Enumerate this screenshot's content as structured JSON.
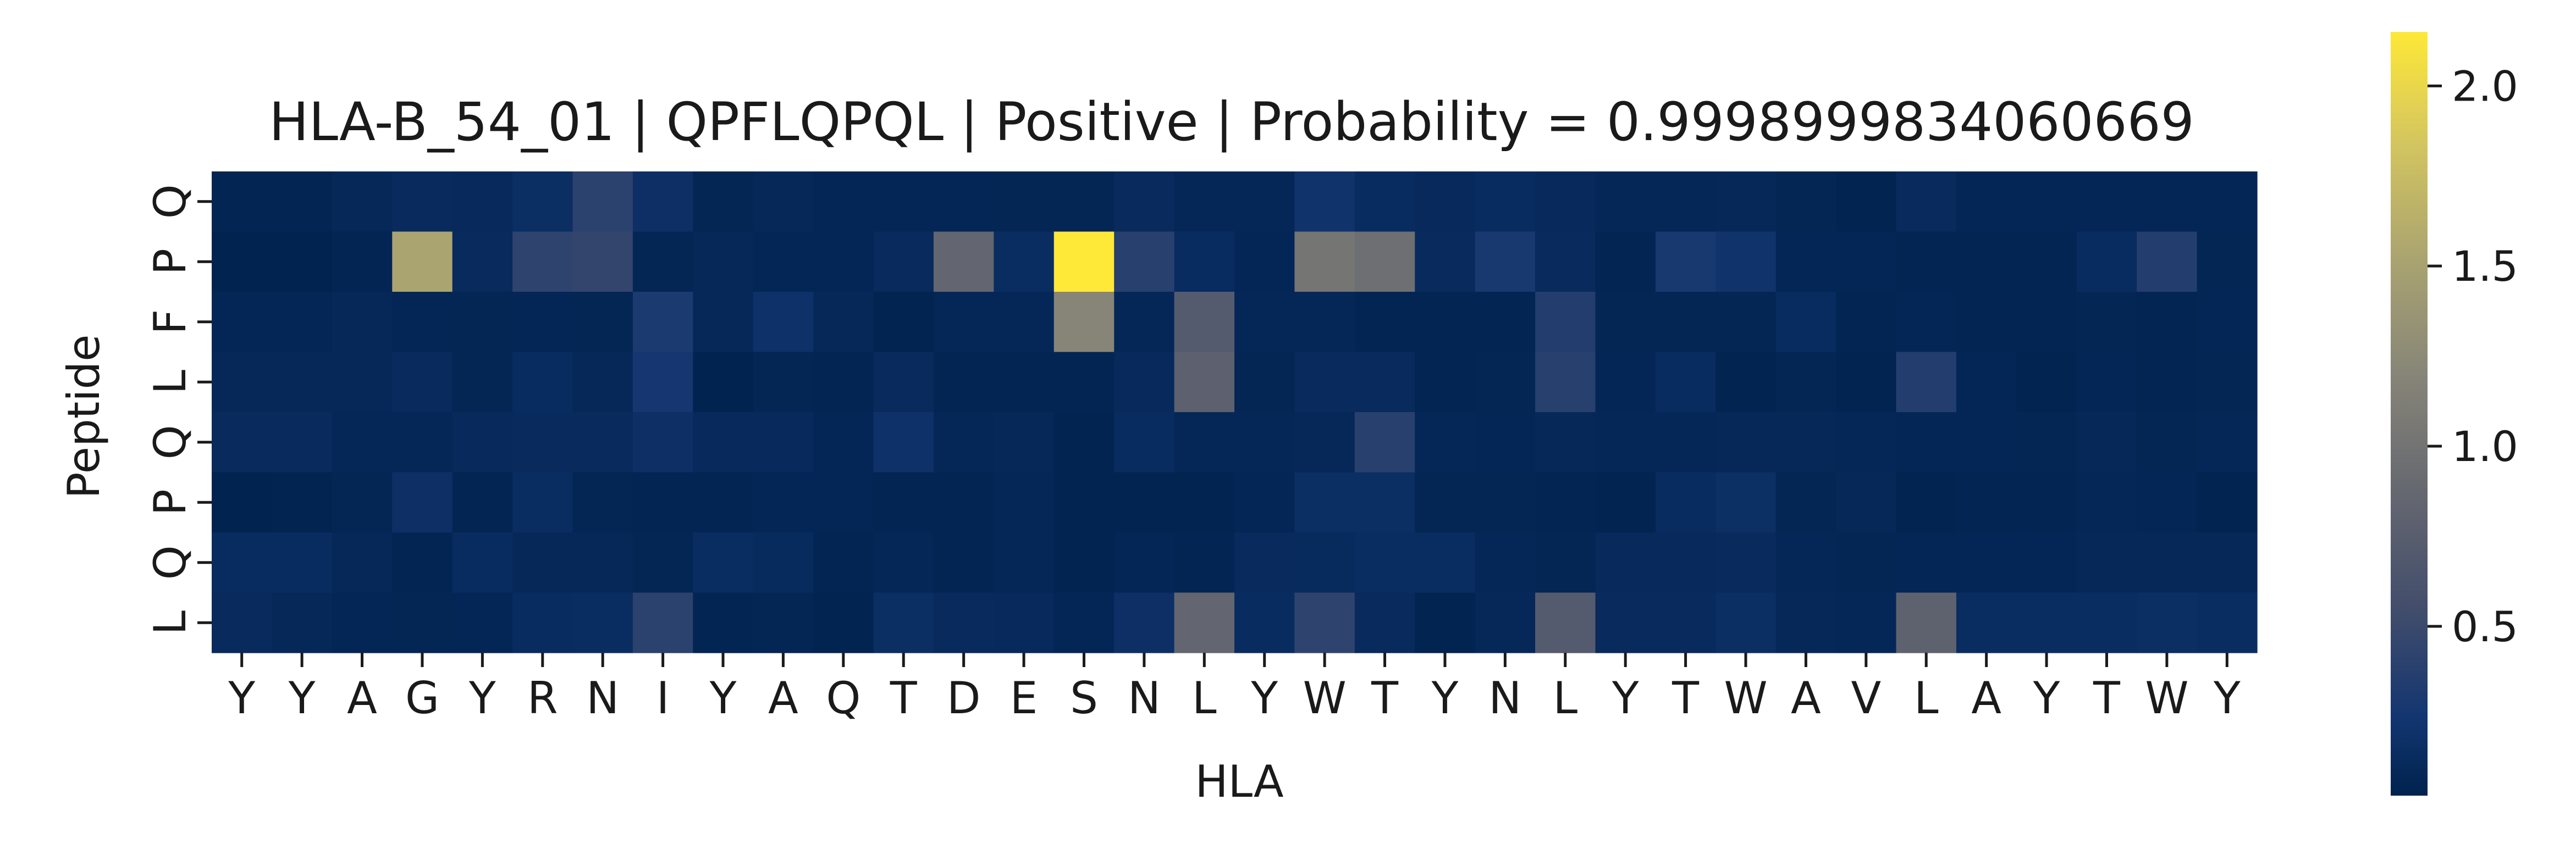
{
  "chart_data": {
    "type": "heatmap",
    "title": "HLA-B_54_01 | QPFLQPQL | Positive | Probability = 0.9998999834060669",
    "xlabel": "HLA",
    "ylabel": "Peptide",
    "x_categories": [
      "Y",
      "Y",
      "A",
      "G",
      "Y",
      "R",
      "N",
      "I",
      "Y",
      "A",
      "Q",
      "T",
      "D",
      "E",
      "S",
      "N",
      "L",
      "Y",
      "W",
      "T",
      "Y",
      "N",
      "L",
      "Y",
      "T",
      "W",
      "A",
      "V",
      "L",
      "A",
      "Y",
      "T",
      "W",
      "Y"
    ],
    "y_categories": [
      "Q",
      "P",
      "F",
      "L",
      "Q",
      "P",
      "Q",
      "L"
    ],
    "colormap": "cividis",
    "colorbar": {
      "min": 0.03,
      "max": 2.15,
      "ticks": [
        0.5,
        1.0,
        1.5,
        2.0
      ],
      "tick_labels": [
        "0.5",
        "1.0",
        "1.5",
        "2.0"
      ]
    },
    "values": [
      [
        0.06,
        0.06,
        0.1,
        0.12,
        0.11,
        0.16,
        0.4,
        0.18,
        0.07,
        0.1,
        0.08,
        0.08,
        0.08,
        0.07,
        0.07,
        0.12,
        0.09,
        0.09,
        0.22,
        0.14,
        0.11,
        0.14,
        0.11,
        0.09,
        0.09,
        0.1,
        0.07,
        0.05,
        0.12,
        0.08,
        0.08,
        0.08,
        0.08,
        0.08
      ],
      [
        0.04,
        0.04,
        0.06,
        1.52,
        0.12,
        0.42,
        0.45,
        0.07,
        0.1,
        0.08,
        0.08,
        0.12,
        0.85,
        0.15,
        2.15,
        0.38,
        0.14,
        0.08,
        1.02,
        0.95,
        0.12,
        0.28,
        0.12,
        0.06,
        0.28,
        0.22,
        0.08,
        0.08,
        0.06,
        0.06,
        0.06,
        0.14,
        0.35,
        0.07
      ],
      [
        0.08,
        0.08,
        0.1,
        0.08,
        0.07,
        0.08,
        0.07,
        0.3,
        0.1,
        0.2,
        0.1,
        0.05,
        0.09,
        0.09,
        1.2,
        0.09,
        0.72,
        0.09,
        0.09,
        0.06,
        0.06,
        0.06,
        0.35,
        0.07,
        0.07,
        0.07,
        0.14,
        0.06,
        0.08,
        0.06,
        0.06,
        0.07,
        0.06,
        0.08
      ],
      [
        0.1,
        0.1,
        0.1,
        0.12,
        0.07,
        0.14,
        0.1,
        0.26,
        0.04,
        0.07,
        0.06,
        0.12,
        0.06,
        0.06,
        0.06,
        0.11,
        0.78,
        0.07,
        0.12,
        0.12,
        0.06,
        0.07,
        0.38,
        0.08,
        0.14,
        0.05,
        0.07,
        0.05,
        0.35,
        0.08,
        0.05,
        0.08,
        0.06,
        0.07
      ],
      [
        0.12,
        0.12,
        0.09,
        0.09,
        0.11,
        0.12,
        0.12,
        0.18,
        0.11,
        0.11,
        0.08,
        0.2,
        0.09,
        0.1,
        0.05,
        0.14,
        0.09,
        0.09,
        0.1,
        0.38,
        0.09,
        0.08,
        0.1,
        0.09,
        0.09,
        0.1,
        0.1,
        0.09,
        0.08,
        0.08,
        0.07,
        0.1,
        0.07,
        0.09
      ],
      [
        0.04,
        0.05,
        0.07,
        0.18,
        0.06,
        0.15,
        0.07,
        0.06,
        0.06,
        0.08,
        0.08,
        0.06,
        0.06,
        0.09,
        0.05,
        0.05,
        0.05,
        0.08,
        0.16,
        0.16,
        0.07,
        0.07,
        0.06,
        0.05,
        0.14,
        0.17,
        0.07,
        0.1,
        0.05,
        0.06,
        0.06,
        0.09,
        0.08,
        0.05
      ],
      [
        0.14,
        0.14,
        0.1,
        0.06,
        0.14,
        0.1,
        0.1,
        0.07,
        0.15,
        0.13,
        0.06,
        0.09,
        0.06,
        0.09,
        0.05,
        0.08,
        0.06,
        0.12,
        0.13,
        0.15,
        0.15,
        0.09,
        0.07,
        0.11,
        0.11,
        0.12,
        0.09,
        0.07,
        0.08,
        0.08,
        0.08,
        0.1,
        0.1,
        0.1
      ],
      [
        0.12,
        0.1,
        0.08,
        0.07,
        0.08,
        0.14,
        0.15,
        0.4,
        0.06,
        0.07,
        0.05,
        0.16,
        0.12,
        0.11,
        0.08,
        0.18,
        0.85,
        0.14,
        0.42,
        0.12,
        0.05,
        0.1,
        0.72,
        0.12,
        0.12,
        0.16,
        0.1,
        0.09,
        0.8,
        0.15,
        0.15,
        0.15,
        0.16,
        0.15
      ]
    ]
  }
}
